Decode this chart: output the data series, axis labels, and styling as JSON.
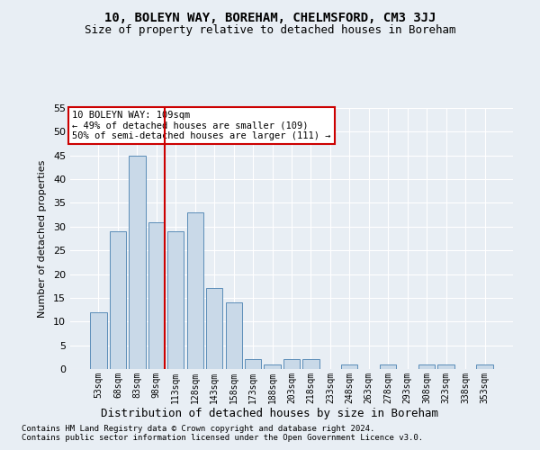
{
  "title": "10, BOLEYN WAY, BOREHAM, CHELMSFORD, CM3 3JJ",
  "subtitle": "Size of property relative to detached houses in Boreham",
  "xlabel": "Distribution of detached houses by size in Boreham",
  "ylabel": "Number of detached properties",
  "footnote1": "Contains HM Land Registry data © Crown copyright and database right 2024.",
  "footnote2": "Contains public sector information licensed under the Open Government Licence v3.0.",
  "annotation_line1": "10 BOLEYN WAY: 109sqm",
  "annotation_line2": "← 49% of detached houses are smaller (109)",
  "annotation_line3": "50% of semi-detached houses are larger (111) →",
  "bar_categories": [
    "53sqm",
    "68sqm",
    "83sqm",
    "98sqm",
    "113sqm",
    "128sqm",
    "143sqm",
    "158sqm",
    "173sqm",
    "188sqm",
    "203sqm",
    "218sqm",
    "233sqm",
    "248sqm",
    "263sqm",
    "278sqm",
    "293sqm",
    "308sqm",
    "323sqm",
    "338sqm",
    "353sqm"
  ],
  "bar_values": [
    12,
    29,
    45,
    31,
    29,
    33,
    17,
    14,
    2,
    1,
    2,
    2,
    0,
    1,
    0,
    1,
    0,
    1,
    1,
    0,
    1
  ],
  "bar_color": "#c9d9e8",
  "bar_edge_color": "#5b8db8",
  "vline_x_index": 3,
  "vline_color": "#cc0000",
  "bg_color": "#e8eef4",
  "grid_color": "#ffffff",
  "annotation_box_color": "#ffffff",
  "annotation_box_edge": "#cc0000",
  "ylim": [
    0,
    55
  ],
  "yticks": [
    0,
    5,
    10,
    15,
    20,
    25,
    30,
    35,
    40,
    45,
    50,
    55
  ]
}
